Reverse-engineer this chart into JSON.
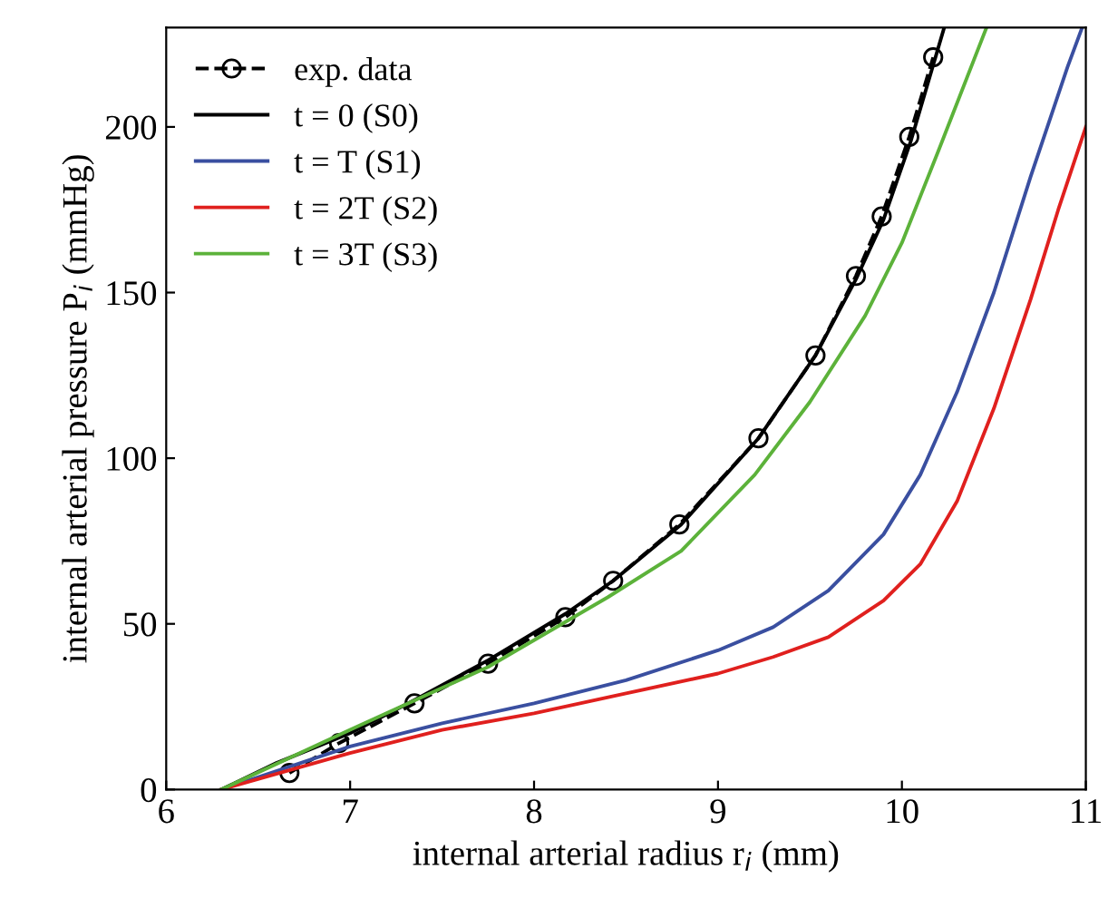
{
  "chart_data": {
    "type": "line",
    "xlabel": "internal arterial radius r$_{i}$ (mm)",
    "ylabel": "internal arterial pressure P$_{i}$ (mmHg)",
    "xlim": [
      6,
      11
    ],
    "ylim": [
      0,
      230
    ],
    "xticks": [
      6,
      7,
      8,
      9,
      10,
      11
    ],
    "yticks": [
      0,
      50,
      100,
      150,
      200
    ],
    "grid": false,
    "legend": "top left",
    "series": [
      {
        "name": "exp. data",
        "color": "#000000",
        "line_style": "dashed",
        "marker": "circle",
        "x": [
          6.67,
          6.94,
          7.35,
          7.75,
          8.17,
          8.43,
          8.79,
          9.22,
          9.53,
          9.75,
          9.89,
          10.04,
          10.17
        ],
        "values": [
          5,
          14,
          26,
          38,
          52,
          63,
          80,
          106,
          131,
          155,
          173,
          197,
          221
        ]
      },
      {
        "name": "t = 0 (S0)",
        "color": "#000000",
        "line_style": "solid",
        "marker": "none",
        "x": [
          6.3,
          6.6,
          7.0,
          7.35,
          7.75,
          8.17,
          8.43,
          8.8,
          9.22,
          9.53,
          9.75,
          9.9,
          10.05,
          10.23
        ],
        "values": [
          0,
          8,
          17,
          27,
          39,
          53,
          63,
          80,
          106,
          131,
          154,
          172,
          196,
          230
        ]
      },
      {
        "name": "t = T (S1)",
        "color": "#3a4fa0",
        "line_style": "solid",
        "marker": "none",
        "x": [
          6.3,
          7.0,
          7.5,
          8.0,
          8.5,
          9.0,
          9.3,
          9.6,
          9.9,
          10.1,
          10.3,
          10.5,
          10.7,
          10.9,
          10.98
        ],
        "values": [
          0,
          13,
          20,
          26,
          33,
          42,
          49,
          60,
          77,
          95,
          120,
          150,
          185,
          218,
          230
        ]
      },
      {
        "name": "t = 2T (S2)",
        "color": "#e0201e",
        "line_style": "solid",
        "marker": "none",
        "x": [
          6.3,
          7.0,
          7.5,
          8.0,
          8.5,
          9.0,
          9.3,
          9.6,
          9.9,
          10.1,
          10.3,
          10.5,
          10.7,
          10.85,
          11.0
        ],
        "values": [
          0,
          11,
          18,
          23,
          29,
          35,
          40,
          46,
          57,
          68,
          87,
          115,
          148,
          175,
          200
        ]
      },
      {
        "name": "t = 3T (S3)",
        "color": "#5cb23a",
        "line_style": "solid",
        "marker": "none",
        "x": [
          6.3,
          7.0,
          7.75,
          8.4,
          8.8,
          9.2,
          9.5,
          9.8,
          10.0,
          10.2,
          10.46
        ],
        "values": [
          0,
          18,
          37,
          58,
          72,
          95,
          117,
          143,
          165,
          193,
          230
        ]
      }
    ]
  }
}
